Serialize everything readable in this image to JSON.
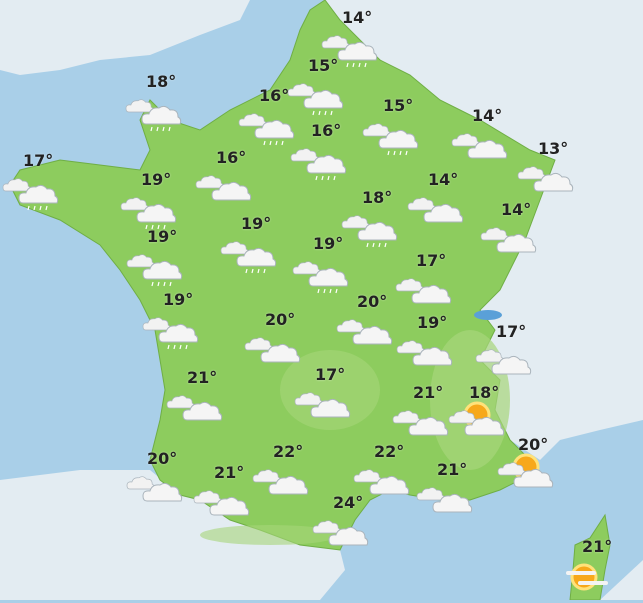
{
  "map": {
    "colors": {
      "sea": "#a9cfe8",
      "neighbor_land": "#e3ecf2",
      "france_land": "#8dcc5e",
      "mountains": "#a7d67a",
      "text": "#222222",
      "sun": "#f7a81b"
    },
    "forecasts": [
      {
        "temp": "14°",
        "icon": "cloud-rain-icon"
      },
      {
        "temp": "18°",
        "icon": "cloud-rain-icon"
      },
      {
        "temp": "15°",
        "icon": "cloud-rain-icon"
      },
      {
        "temp": "16°",
        "icon": "cloud-rain-icon"
      },
      {
        "temp": "15°",
        "icon": "cloud-rain-icon"
      },
      {
        "temp": "14°",
        "icon": "cloud-icon"
      },
      {
        "temp": "13°",
        "icon": "cloud-icon"
      },
      {
        "temp": "17°",
        "icon": "cloud-rain-icon"
      },
      {
        "temp": "16°",
        "icon": "cloud-rain-icon"
      },
      {
        "temp": "16°",
        "icon": "cloud-icon"
      },
      {
        "temp": "19°",
        "icon": "cloud-rain-icon"
      },
      {
        "temp": "14°",
        "icon": "cloud-icon"
      },
      {
        "temp": "18°",
        "icon": "cloud-rain-icon"
      },
      {
        "temp": "14°",
        "icon": "cloud-icon"
      },
      {
        "temp": "19°",
        "icon": "cloud-rain-icon"
      },
      {
        "temp": "19°",
        "icon": "cloud-rain-icon"
      },
      {
        "temp": "19°",
        "icon": "cloud-rain-icon"
      },
      {
        "temp": "17°",
        "icon": "cloud-icon"
      },
      {
        "temp": "19°",
        "icon": "cloud-rain-icon"
      },
      {
        "temp": "20°",
        "icon": "cloud-icon"
      },
      {
        "temp": "20°",
        "icon": "cloud-icon"
      },
      {
        "temp": "19°",
        "icon": "cloud-icon"
      },
      {
        "temp": "17°",
        "icon": "cloud-icon"
      },
      {
        "temp": "21°",
        "icon": "cloud-icon"
      },
      {
        "temp": "17°",
        "icon": "cloud-icon"
      },
      {
        "temp": "21°",
        "icon": "cloud-icon"
      },
      {
        "temp": "18°",
        "icon": "sun-cloud-icon"
      },
      {
        "temp": "22°",
        "icon": "cloud-icon"
      },
      {
        "temp": "22°",
        "icon": "cloud-icon"
      },
      {
        "temp": "20°",
        "icon": "cloud-icon"
      },
      {
        "temp": "21°",
        "icon": "cloud-icon"
      },
      {
        "temp": "21°",
        "icon": "cloud-icon"
      },
      {
        "temp": "20°",
        "icon": "sun-cloud-icon"
      },
      {
        "temp": "24°",
        "icon": "cloud-icon"
      },
      {
        "temp": "21°",
        "icon": "sun-fog-icon"
      }
    ]
  }
}
